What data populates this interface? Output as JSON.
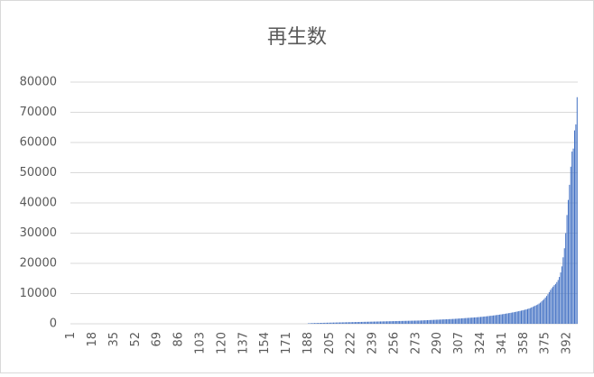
{
  "chart_data": {
    "type": "bar",
    "title": "再生数",
    "categories": [
      1,
      null,
      null,
      null,
      null,
      null,
      null,
      null,
      null,
      null,
      null,
      null,
      null,
      null,
      null,
      null,
      null,
      18,
      null,
      null,
      null,
      null,
      null,
      null,
      null,
      null,
      null,
      null,
      null,
      null,
      null,
      null,
      null,
      null,
      35,
      null,
      null,
      null,
      null,
      null,
      null,
      null,
      null,
      null,
      null,
      null,
      null,
      null,
      null,
      null,
      null,
      52,
      null,
      null,
      null,
      null,
      null,
      null,
      null,
      null,
      null,
      null,
      null,
      null,
      null,
      null,
      null,
      null,
      69,
      null,
      null,
      null,
      null,
      null,
      null,
      null,
      null,
      null,
      null,
      null,
      null,
      null,
      null,
      null,
      null,
      86,
      null,
      null,
      null,
      null,
      null,
      null,
      null,
      null,
      null,
      null,
      null,
      null,
      null,
      null,
      null,
      null,
      103,
      null,
      null,
      null,
      null,
      null,
      null,
      null,
      null,
      null,
      null,
      null,
      null,
      null,
      null,
      null,
      null,
      120,
      null,
      null,
      null,
      null,
      null,
      null,
      null,
      null,
      null,
      null,
      null,
      null,
      null,
      null,
      null,
      null,
      137,
      null,
      null,
      null,
      null,
      null,
      null,
      null,
      null,
      null,
      null,
      null,
      null,
      null,
      null,
      null,
      null,
      154,
      null,
      null,
      null,
      null,
      null,
      null,
      null,
      null,
      null,
      null,
      null,
      null,
      null,
      null,
      null,
      null,
      171,
      null,
      null,
      null,
      null,
      null,
      null,
      null,
      null,
      null,
      null,
      null,
      null,
      null,
      null,
      null,
      null,
      188,
      null,
      null,
      null,
      null,
      null,
      null,
      null,
      null,
      null,
      null,
      null,
      null,
      null,
      null,
      null,
      null,
      205,
      null,
      null,
      null,
      null,
      null,
      null,
      null,
      null,
      null,
      null,
      null,
      null,
      null,
      null,
      null,
      null,
      222,
      null,
      null,
      null,
      null,
      null,
      null,
      null,
      null,
      null,
      null,
      null,
      null,
      null,
      null,
      null,
      null,
      239,
      null,
      null,
      null,
      null,
      null,
      null,
      null,
      null,
      null,
      null,
      null,
      null,
      null,
      null,
      null,
      null,
      256,
      null,
      null,
      null,
      null,
      null,
      null,
      null,
      null,
      null,
      null,
      null,
      null,
      null,
      null,
      null,
      null,
      273,
      null,
      null,
      null,
      null,
      null,
      null,
      null,
      null,
      null,
      null,
      null,
      null,
      null,
      null,
      null,
      null,
      290,
      null,
      null,
      null,
      null,
      null,
      null,
      null,
      null,
      null,
      null,
      null,
      null,
      null,
      null,
      null,
      null,
      307,
      null,
      null,
      null,
      null,
      null,
      null,
      null,
      null,
      null,
      null,
      null,
      null,
      null,
      null,
      null,
      null,
      324,
      null,
      null,
      null,
      null,
      null,
      null,
      null,
      null,
      null,
      null,
      null,
      null,
      null,
      null,
      null,
      null,
      341,
      null,
      null,
      null,
      null,
      null,
      null,
      null,
      null,
      null,
      null,
      null,
      null,
      null,
      null,
      null,
      null,
      358,
      null,
      null,
      null,
      null,
      null,
      null,
      null,
      null,
      null,
      null,
      null,
      null,
      null,
      null,
      null,
      null,
      375,
      null,
      null,
      null,
      null,
      null,
      null,
      null,
      null,
      null,
      null,
      null,
      null,
      null,
      null,
      null,
      null,
      392,
      null,
      null,
      null,
      null,
      null,
      null,
      null,
      null
    ],
    "values": [
      0,
      0,
      0,
      0,
      0,
      0,
      0,
      0,
      0,
      0,
      0,
      0,
      0,
      0,
      0,
      0,
      0,
      0,
      0,
      0,
      0,
      0,
      0,
      0,
      0,
      0,
      0,
      0,
      0,
      0,
      0,
      0,
      0,
      0,
      0,
      0,
      0,
      0,
      0,
      0,
      0,
      0,
      0,
      0,
      0,
      0,
      0,
      0,
      0,
      0,
      0,
      0,
      0,
      0,
      0,
      0,
      0,
      0,
      0,
      0,
      0,
      0,
      0,
      0,
      0,
      0,
      0,
      0,
      0,
      0,
      0,
      0,
      0,
      0,
      0,
      0,
      0,
      0,
      0,
      0,
      0,
      0,
      0,
      0,
      0,
      0,
      0,
      0,
      0,
      0,
      0,
      0,
      0,
      0,
      0,
      0,
      0,
      0,
      0,
      0,
      0,
      0,
      0,
      0,
      0,
      0,
      0,
      0,
      0,
      0,
      0,
      0,
      0,
      0,
      0,
      0,
      0,
      0,
      0,
      0,
      0,
      0,
      0,
      0,
      0,
      0,
      0,
      0,
      0,
      0,
      0,
      0,
      0,
      0,
      0,
      0,
      0,
      0,
      0,
      0,
      0,
      0,
      0,
      0,
      0,
      0,
      0,
      0,
      0,
      0,
      0,
      0,
      0,
      0,
      0,
      0,
      0,
      0,
      0,
      0,
      0,
      0,
      0,
      0,
      0,
      0,
      0,
      0,
      0,
      0,
      0,
      0,
      0,
      0,
      0,
      0,
      0,
      0,
      0,
      0,
      0,
      0,
      0,
      0,
      0,
      0,
      0,
      150,
      180,
      200,
      220,
      240,
      250,
      260,
      270,
      280,
      290,
      300,
      310,
      320,
      330,
      340,
      350,
      360,
      370,
      380,
      390,
      400,
      410,
      420,
      430,
      440,
      450,
      460,
      470,
      480,
      490,
      500,
      510,
      520,
      530,
      540,
      550,
      560,
      570,
      580,
      590,
      600,
      610,
      620,
      630,
      640,
      650,
      660,
      670,
      680,
      690,
      700,
      710,
      720,
      730,
      740,
      750,
      760,
      770,
      780,
      790,
      800,
      810,
      820,
      830,
      840,
      850,
      860,
      870,
      880,
      890,
      900,
      910,
      920,
      930,
      940,
      950,
      960,
      970,
      980,
      990,
      1000,
      1010,
      1020,
      1030,
      1040,
      1050,
      1060,
      1070,
      1080,
      1100,
      1120,
      1140,
      1160,
      1180,
      1200,
      1220,
      1240,
      1260,
      1280,
      1300,
      1320,
      1340,
      1360,
      1380,
      1400,
      1420,
      1440,
      1460,
      1480,
      1500,
      1520,
      1540,
      1560,
      1580,
      1600,
      1620,
      1650,
      1680,
      1710,
      1740,
      1770,
      1800,
      1830,
      1860,
      1890,
      1920,
      1950,
      1980,
      2010,
      2040,
      2070,
      2100,
      2130,
      2160,
      2200,
      2240,
      2280,
      2320,
      2360,
      2400,
      2450,
      2500,
      2550,
      2600,
      2650,
      2700,
      2750,
      2800,
      2860,
      2920,
      2980,
      3040,
      3100,
      3160,
      3230,
      3300,
      3370,
      3440,
      3510,
      3580,
      3660,
      3740,
      3820,
      3900,
      3990,
      4080,
      4170,
      4260,
      4360,
      4460,
      4560,
      4670,
      4780,
      4900,
      5050,
      5200,
      5400,
      5600,
      5800,
      6000,
      6200,
      6400,
      6700,
      7000,
      7400,
      7800,
      8200,
      8700,
      9200,
      9800,
      10500,
      11200,
      11800,
      12300,
      12800,
      13200,
      13800,
      14500,
      15500,
      17000,
      19000,
      22000,
      25000,
      30000,
      36000,
      41000,
      46000,
      52000,
      57000,
      58000,
      64000,
      66000,
      75000
    ],
    "color": "#4472c4",
    "ylim": [
      0,
      80000
    ],
    "yticks": [
      0,
      10000,
      20000,
      30000,
      40000,
      50000,
      60000,
      70000,
      80000
    ],
    "grid": true
  }
}
